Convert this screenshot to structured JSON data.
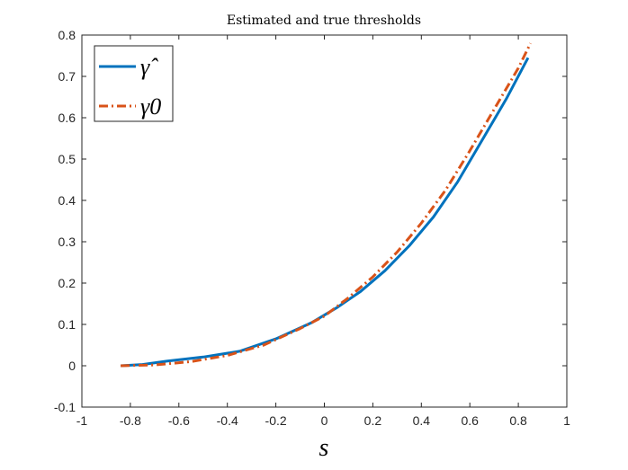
{
  "chart_data": {
    "type": "line",
    "title": "Estimated and true thresholds",
    "xlabel": "s",
    "ylabel": "",
    "xlim": [
      -1,
      1
    ],
    "ylim": [
      -0.1,
      0.8
    ],
    "xticks": [
      "-1",
      "-0.8",
      "-0.6",
      "-0.4",
      "-0.2",
      "0",
      "0.2",
      "0.4",
      "0.6",
      "0.8",
      "1"
    ],
    "yticks": [
      "-0.1",
      "0",
      "0.1",
      "0.2",
      "0.3",
      "0.4",
      "0.5",
      "0.6",
      "0.7",
      "0.8"
    ],
    "grid": false,
    "legend_position": "top-left",
    "series": [
      {
        "name": "γ̂",
        "color": "#0072BD",
        "style": "solid",
        "x": [
          -0.84,
          -0.75,
          -0.65,
          -0.5,
          -0.35,
          -0.2,
          -0.05,
          0.05,
          0.15,
          0.25,
          0.35,
          0.45,
          0.55,
          0.65,
          0.75,
          0.84
        ],
        "y": [
          0.0,
          0.003,
          0.011,
          0.021,
          0.035,
          0.065,
          0.105,
          0.14,
          0.18,
          0.23,
          0.29,
          0.36,
          0.445,
          0.545,
          0.645,
          0.745
        ]
      },
      {
        "name": "γ0",
        "color": "#D95319",
        "style": "dashdot",
        "x": [
          -0.84,
          -0.7,
          -0.55,
          -0.4,
          -0.25,
          -0.1,
          0.0,
          0.1,
          0.2,
          0.3,
          0.4,
          0.5,
          0.6,
          0.7,
          0.8,
          0.85
        ],
        "y": [
          0.0,
          0.002,
          0.01,
          0.025,
          0.05,
          0.09,
          0.12,
          0.165,
          0.215,
          0.275,
          0.345,
          0.425,
          0.52,
          0.62,
          0.72,
          0.78
        ]
      }
    ]
  }
}
